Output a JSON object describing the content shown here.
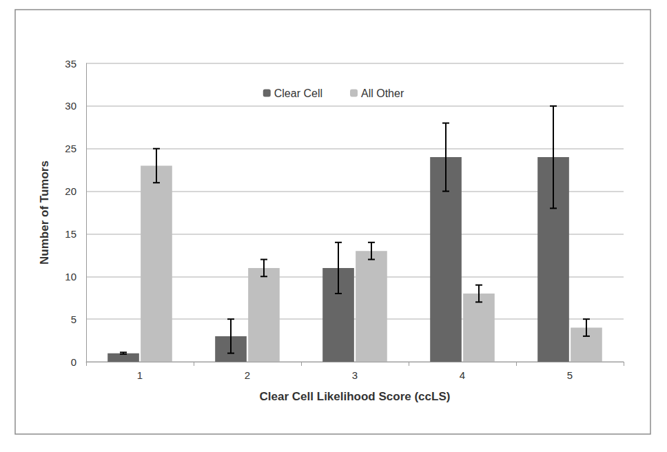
{
  "chart_data": {
    "type": "bar",
    "categories": [
      "1",
      "2",
      "3",
      "4",
      "5"
    ],
    "x_label": "Clear Cell Likelihood Score (ccLS)",
    "y_label": "Number of Tumors",
    "ylim": [
      0,
      35
    ],
    "yticks": [
      0,
      5,
      10,
      15,
      20,
      25,
      30,
      35
    ],
    "grid": true,
    "legend": "top",
    "series": [
      {
        "name": "Clear Cell",
        "color": "#666666",
        "values": [
          1,
          3,
          11,
          24,
          24
        ],
        "error_bars": [
          [
            0.9,
            1.1
          ],
          [
            1,
            5
          ],
          [
            8,
            14
          ],
          [
            20,
            28
          ],
          [
            18,
            30
          ]
        ]
      },
      {
        "name": "All Other",
        "color": "#bfbfbf",
        "values": [
          23,
          11,
          13,
          8,
          4
        ],
        "error_bars": [
          [
            21,
            25
          ],
          [
            10,
            12
          ],
          [
            12,
            14
          ],
          [
            7,
            9
          ],
          [
            3,
            5
          ]
        ]
      }
    ]
  }
}
